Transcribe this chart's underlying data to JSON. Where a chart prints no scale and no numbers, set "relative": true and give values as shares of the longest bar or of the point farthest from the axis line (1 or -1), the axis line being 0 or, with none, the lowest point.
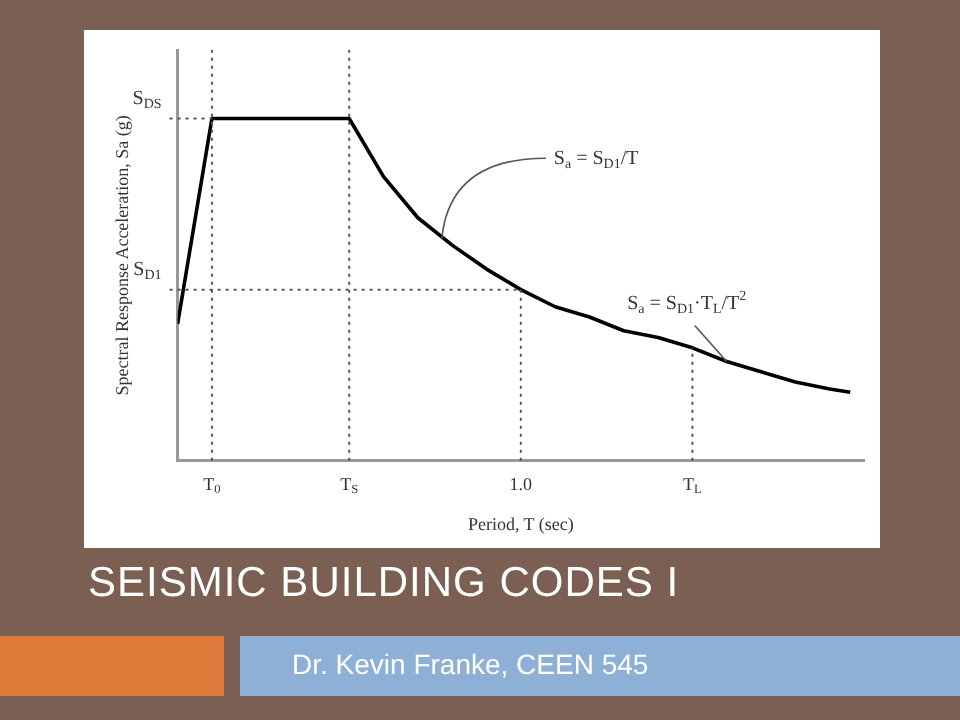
{
  "chart_data": {
    "type": "line",
    "title": "SEISMIC BUILDING CODES I",
    "subtitle": "Dr. Kevin Franke, CEEN 545",
    "xlabel": "Period, T (sec)",
    "ylabel": "Spectral Response Acceleration, Sa (g)",
    "relative": true,
    "xlim": [
      0,
      2
    ],
    "xticks": [
      {
        "value": 0.1,
        "label": "T$_{0}$"
      },
      {
        "value": 0.5,
        "label": "T$_{S}$"
      },
      {
        "value": 1.0,
        "label": "1.0"
      },
      {
        "value": 1.5,
        "label": "T$_{L}$"
      }
    ],
    "x": [
      0,
      0.1,
      0.5,
      0.6,
      0.7,
      0.8,
      0.9,
      1.0,
      1.1,
      1.2,
      1.3,
      1.4,
      1.5,
      1.6,
      1.7,
      1.8,
      1.9,
      1.96
    ],
    "series": [
      {
        "color": "#000000",
        "values": [
          0.4,
          1,
          1,
          0.83,
          0.71,
          0.63,
          0.56,
          0.5,
          0.45,
          0.42,
          0.38,
          0.36,
          0.33,
          0.29,
          0.26,
          0.23,
          0.21,
          0.2
        ]
      }
    ],
    "ref_lines": [
      {
        "axis": "y",
        "value": 1,
        "label": "S$_{DS}$",
        "line_style": "dotted"
      },
      {
        "axis": "y",
        "value": 0.5,
        "label": "S$_{D1}$",
        "line_style": "dotted"
      },
      {
        "axis": "x",
        "value": 0.1,
        "line_style": "dotted"
      },
      {
        "axis": "x",
        "value": 0.5,
        "line_style": "dotted"
      },
      {
        "axis": "x",
        "value": 1.0,
        "line_style": "dotted"
      },
      {
        "axis": "x",
        "value": 1.5,
        "line_style": "dotted"
      }
    ],
    "annotations": [
      {
        "text": "S$_{a}$ = S$_{D1}$/T",
        "x": 0.77,
        "y": 0.65
      },
      {
        "text": "S$_{a}$ = S$_{D1}$·T$_{L}$/T$^{2}$",
        "x": 1.6,
        "y": 0.29
      }
    ],
    "grid": false,
    "legend": false,
    "marker": "none",
    "line_style": "solid"
  }
}
